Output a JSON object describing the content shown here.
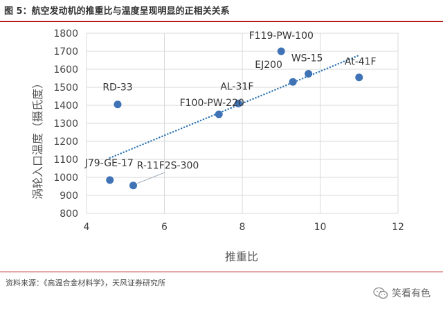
{
  "figure": {
    "title": "图 5：航空发动机的推重比与温度呈现明显的正相关关系",
    "source": "资料来源：《高温合金材料学》，天风证券研究所",
    "watermark": "笑看有色"
  },
  "colors": {
    "accent_rule": "#b91c1c",
    "marker": "#3f73b6",
    "trendline": "#2e75b6",
    "grid": "#d9d9d9",
    "leader_line": "#9aa7b8"
  },
  "chart_data": {
    "type": "scatter",
    "xlabel": "推重比",
    "ylabel": "涡轮入口温度（摄氏度）",
    "xlim": [
      4,
      12
    ],
    "ylim": [
      800,
      1800
    ],
    "xticks": [
      4,
      6,
      8,
      10,
      12
    ],
    "yticks": [
      800,
      900,
      1000,
      1100,
      1200,
      1300,
      1400,
      1500,
      1600,
      1700,
      1800
    ],
    "grid": true,
    "points": [
      {
        "label": "J79-GE-17",
        "x": 4.6,
        "y": 985
      },
      {
        "label": "RD-33",
        "x": 4.8,
        "y": 1405
      },
      {
        "label": "R-11F2S-300",
        "x": 5.2,
        "y": 955
      },
      {
        "label": "F100-PW-220",
        "x": 7.4,
        "y": 1350
      },
      {
        "label": "AL-31F",
        "x": 7.9,
        "y": 1410
      },
      {
        "label": "F119-PW-100",
        "x": 9.0,
        "y": 1700
      },
      {
        "label": "EJ200",
        "x": 9.3,
        "y": 1530
      },
      {
        "label": "WS-15",
        "x": 9.7,
        "y": 1575
      },
      {
        "label": "At-41F",
        "x": 11.0,
        "y": 1555
      }
    ],
    "trendline": {
      "style": "dotted",
      "from": {
        "x": 4.6,
        "y": 1108
      },
      "to": {
        "x": 11.0,
        "y": 1678
      }
    }
  }
}
